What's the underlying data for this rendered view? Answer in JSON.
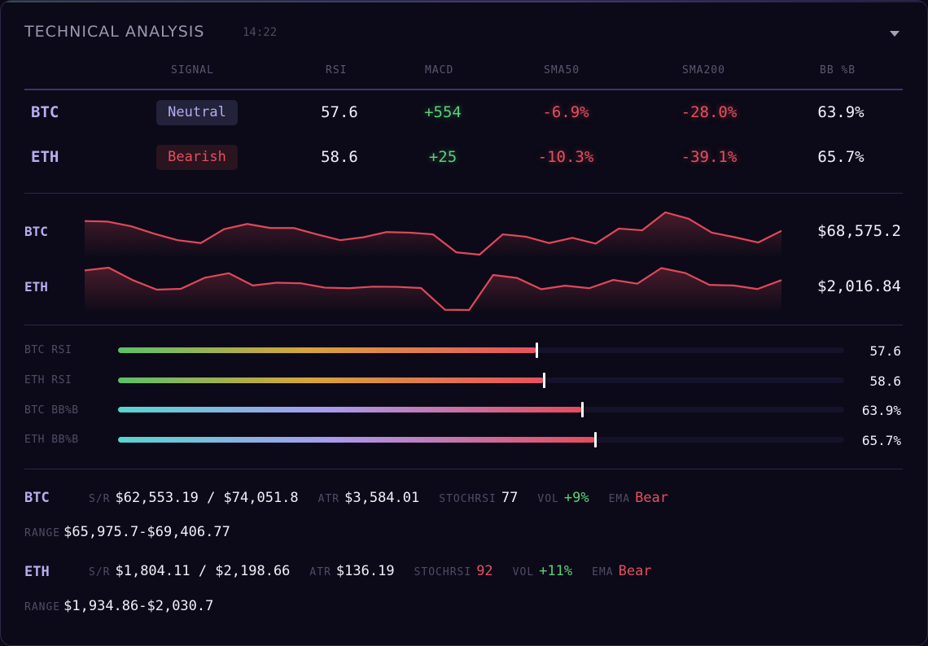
{
  "header": {
    "title": "TECHNICAL ANALYSIS",
    "time": "14:22"
  },
  "columns": [
    "SIGNAL",
    "RSI",
    "MACD",
    "SMA50",
    "SMA200",
    "BB %B"
  ],
  "rows": [
    {
      "symbol": "BTC",
      "signal": "Neutral",
      "rsi": "57.6",
      "macd": "+554",
      "sma50": "-6.9%",
      "sma200": "-28.0%",
      "bb": "63.9%"
    },
    {
      "symbol": "ETH",
      "signal": "Bearish",
      "rsi": "58.6",
      "macd": "+25",
      "sma50": "-10.3%",
      "sma200": "-39.1%",
      "bb": "65.7%"
    }
  ],
  "sparklines": [
    {
      "symbol": "BTC",
      "price": "$68,575.2",
      "series": [
        68.0,
        67.95,
        67.55,
        66.9,
        66.35,
        66.1,
        67.3,
        67.75,
        67.4,
        67.4,
        66.85,
        66.35,
        66.6,
        67.05,
        67.0,
        66.85,
        65.3,
        65.1,
        66.85,
        66.65,
        66.1,
        66.55,
        66.05,
        67.35,
        67.2,
        68.75,
        68.2,
        67.0,
        66.6,
        66.15,
        67.15
      ],
      "color": "#e0485a"
    },
    {
      "symbol": "ETH",
      "price": "$2,016.84",
      "series": [
        2020.1,
        2021.5,
        2015.2,
        2010.4,
        2010.8,
        2016.4,
        2018.7,
        2012.5,
        2013.9,
        2013.6,
        2011.4,
        2011.1,
        2011.9,
        2011.8,
        2011.2,
        2000.2,
        2000.1,
        2017.8,
        2016.3,
        2010.6,
        2012.4,
        2011.1,
        2015.3,
        2013.4,
        2021.3,
        2018.8,
        2012.8,
        2012.5,
        2010.7,
        2015.2
      ],
      "color": "#e0485a"
    }
  ],
  "bars": [
    {
      "label": "BTC RSI",
      "value": "57.6",
      "pct": 57.6,
      "kind": "rsi"
    },
    {
      "label": "ETH RSI",
      "value": "58.6",
      "pct": 58.6,
      "kind": "rsi"
    },
    {
      "label": "BTC BB%B",
      "value": "63.9%",
      "pct": 63.9,
      "kind": "bb"
    },
    {
      "label": "ETH BB%B",
      "value": "65.7%",
      "pct": 65.7,
      "kind": "bb"
    }
  ],
  "details": [
    {
      "symbol": "BTC",
      "sr_label": "S/R",
      "sr": "$62,553.19 / $74,051.8",
      "atr_label": "ATR",
      "atr": "$3,584.01",
      "stoch_label": "STOCHRSI",
      "stoch": "77",
      "vol_label": "VOL",
      "vol": "+9%",
      "ema_label": "EMA",
      "ema": "Bear",
      "range_label": "RANGE",
      "range": "$65,975.7-$69,406.77"
    },
    {
      "symbol": "ETH",
      "sr_label": "S/R",
      "sr": "$1,804.11 / $2,198.66",
      "atr_label": "ATR",
      "atr": "$136.19",
      "stoch_label": "STOCHRSI",
      "stoch": "92",
      "vol_label": "VOL",
      "vol": "+11%",
      "ema_label": "EMA",
      "ema": "Bear",
      "range_label": "RANGE",
      "range": "$1,934.86-$2,030.7"
    }
  ]
}
